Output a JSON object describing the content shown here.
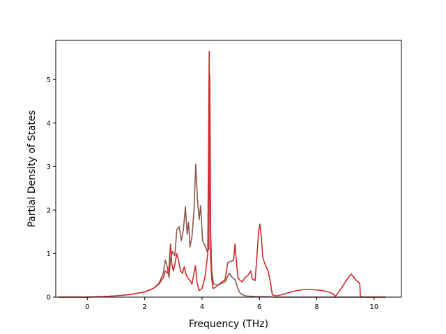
{
  "chart_data": {
    "type": "line",
    "title": "",
    "xlabel": "Frequency (THz)",
    "ylabel": "Partial Density of States",
    "xlim": [
      -1.1,
      10.95
    ],
    "ylim": [
      0,
      5.9
    ],
    "x_ticks": [
      0,
      2,
      4,
      6,
      8,
      10
    ],
    "y_ticks": [
      0,
      1,
      2,
      3,
      4,
      5
    ],
    "grid": false,
    "legend": "none",
    "series": [
      {
        "color": "#8c564b",
        "x": [
          -1.0,
          0.0,
          0.5,
          1.0,
          1.5,
          2.0,
          2.3,
          2.5,
          2.65,
          2.72,
          2.78,
          2.85,
          2.9,
          2.97,
          3.05,
          3.12,
          3.2,
          3.28,
          3.35,
          3.42,
          3.48,
          3.53,
          3.58,
          3.65,
          3.72,
          3.78,
          3.84,
          3.9,
          3.95,
          4.02,
          4.1,
          4.18,
          4.24,
          4.27,
          4.3,
          4.34,
          4.4,
          4.55,
          4.8,
          4.95,
          5.05,
          5.15,
          5.2,
          5.25,
          5.3,
          5.35,
          5.5,
          5.7,
          5.9,
          6.1,
          6.3,
          6.5,
          7.0,
          7.5,
          8.0,
          8.5,
          9.0,
          9.5,
          10.0,
          10.4
        ],
        "y": [
          0,
          0,
          0.01,
          0.03,
          0.06,
          0.12,
          0.2,
          0.32,
          0.55,
          0.85,
          0.72,
          0.45,
          0.88,
          1.05,
          0.95,
          1.55,
          1.62,
          1.3,
          1.55,
          2.08,
          1.45,
          1.72,
          1.15,
          1.4,
          2.0,
          3.05,
          2.25,
          1.78,
          2.1,
          1.3,
          1.18,
          1.05,
          1.1,
          5.1,
          1.5,
          0.6,
          0.3,
          0.28,
          0.35,
          0.55,
          0.45,
          0.4,
          0.3,
          0.2,
          0.12,
          0.08,
          0.03,
          0.02,
          0.01,
          0.01,
          0.01,
          0,
          0,
          0,
          0,
          0,
          0,
          0,
          0,
          0
        ]
      },
      {
        "color": "#d62728",
        "x": [
          -1.0,
          0.0,
          0.5,
          1.0,
          1.5,
          2.0,
          2.3,
          2.5,
          2.65,
          2.72,
          2.8,
          2.85,
          2.9,
          2.95,
          3.0,
          3.05,
          3.12,
          3.18,
          3.25,
          3.32,
          3.38,
          3.45,
          3.5,
          3.58,
          3.65,
          3.72,
          3.77,
          3.82,
          3.9,
          4.0,
          4.1,
          4.2,
          4.25,
          4.28,
          4.3,
          4.34,
          4.38,
          4.45,
          4.6,
          4.8,
          4.9,
          5.0,
          5.1,
          5.15,
          5.2,
          5.25,
          5.3,
          5.4,
          5.5,
          5.6,
          5.7,
          5.75,
          5.85,
          5.92,
          5.97,
          6.02,
          6.07,
          6.12,
          6.2,
          6.3,
          6.38,
          6.45,
          6.6,
          6.8,
          7.0,
          7.3,
          7.6,
          7.9,
          8.2,
          8.4,
          8.55,
          8.65,
          8.72,
          8.8,
          8.9,
          9.0,
          9.1,
          9.2,
          9.3,
          9.38,
          9.45,
          9.5,
          9.52,
          9.6,
          10.0,
          10.4
        ],
        "y": [
          0,
          0,
          0.01,
          0.03,
          0.06,
          0.12,
          0.2,
          0.3,
          0.45,
          0.6,
          0.55,
          0.7,
          1.22,
          0.75,
          0.6,
          0.75,
          1.0,
          0.85,
          0.6,
          0.55,
          0.7,
          0.5,
          0.45,
          0.38,
          0.3,
          0.55,
          0.72,
          0.35,
          0.15,
          0.2,
          0.45,
          1.0,
          5.65,
          3.5,
          0.9,
          0.4,
          0.2,
          0.22,
          0.3,
          0.4,
          0.8,
          0.82,
          0.85,
          1.22,
          0.8,
          0.45,
          0.4,
          0.35,
          0.45,
          0.5,
          0.6,
          0.42,
          0.38,
          1.0,
          1.5,
          1.68,
          1.35,
          0.9,
          0.75,
          0.6,
          0.35,
          0.05,
          0.03,
          0.06,
          0.1,
          0.15,
          0.18,
          0.17,
          0.15,
          0.12,
          0.08,
          0.02,
          0.08,
          0.15,
          0.25,
          0.35,
          0.45,
          0.53,
          0.45,
          0.38,
          0.35,
          0.3,
          0.02,
          0,
          0,
          0
        ]
      }
    ]
  }
}
